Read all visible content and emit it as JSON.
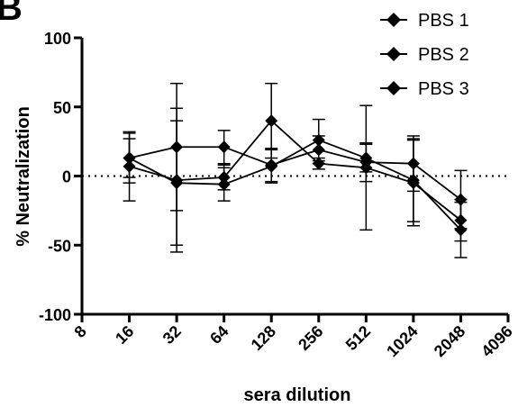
{
  "chart_data": {
    "type": "line",
    "panel_label": "B",
    "xlabel": "sera dilution",
    "ylabel": "% Neutralization",
    "x_scale": "log2",
    "x_ticks": [
      "8",
      "16",
      "32",
      "64",
      "128",
      "256",
      "512",
      "1024",
      "2048",
      "4096"
    ],
    "xlim": [
      8,
      4096
    ],
    "y_ticks": [
      "-100",
      "-50",
      "0",
      "50",
      "100"
    ],
    "ylim": [
      -100,
      100
    ],
    "reference_line": {
      "y": 0,
      "style": "dotted"
    },
    "legend_position": "top-right",
    "marker": "diamond",
    "colors": {
      "series": "#000000"
    },
    "x": [
      16,
      32,
      64,
      128,
      256,
      512,
      1024,
      2048
    ],
    "series": [
      {
        "name": "PBS 1",
        "values": [
          13,
          21,
          21,
          8,
          19,
          10,
          9,
          -17
        ],
        "error": [
          18,
          46,
          12,
          12,
          10,
          14,
          20,
          21
        ]
      },
      {
        "name": "PBS 2",
        "values": [
          7,
          -3,
          -1,
          40,
          9,
          6,
          -5,
          -32
        ],
        "error": [
          25,
          52,
          9,
          27,
          4,
          45,
          31,
          15
        ]
      },
      {
        "name": "PBS 3",
        "values": [
          13,
          -5,
          -6,
          7,
          26,
          13,
          -3,
          -39
        ],
        "error": [
          14,
          45,
          12,
          12,
          15,
          10,
          30,
          20
        ]
      }
    ]
  }
}
